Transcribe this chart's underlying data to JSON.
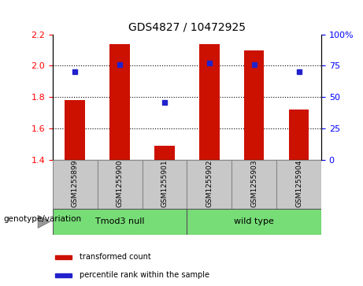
{
  "title": "GDS4827 / 10472925",
  "samples": [
    "GSM1255899",
    "GSM1255900",
    "GSM1255901",
    "GSM1255902",
    "GSM1255903",
    "GSM1255904"
  ],
  "bar_values": [
    1.78,
    2.14,
    1.49,
    2.14,
    2.1,
    1.72
  ],
  "dot_percentiles": [
    70,
    76,
    46,
    77,
    76,
    70
  ],
  "ylim_left": [
    1.4,
    2.2
  ],
  "ylim_right": [
    0,
    100
  ],
  "yticks_left": [
    1.4,
    1.6,
    1.8,
    2.0,
    2.2
  ],
  "yticks_right": [
    0,
    25,
    50,
    75,
    100
  ],
  "bar_color": "#CC1100",
  "dot_color": "#2222CC",
  "bar_bottom": 1.4,
  "grid_lines": [
    1.6,
    1.8,
    2.0
  ],
  "legend_labels": [
    "transformed count",
    "percentile rank within the sample"
  ],
  "genotype_label": "genotype/variation",
  "sample_box_color": "#C8C8C8",
  "group_defs": [
    {
      "start": 0,
      "end": 2,
      "label": "Tmod3 null"
    },
    {
      "start": 3,
      "end": 5,
      "label": "wild type"
    }
  ],
  "group_color": "#77DD77",
  "figsize": [
    4.61,
    3.63
  ],
  "dpi": 100
}
